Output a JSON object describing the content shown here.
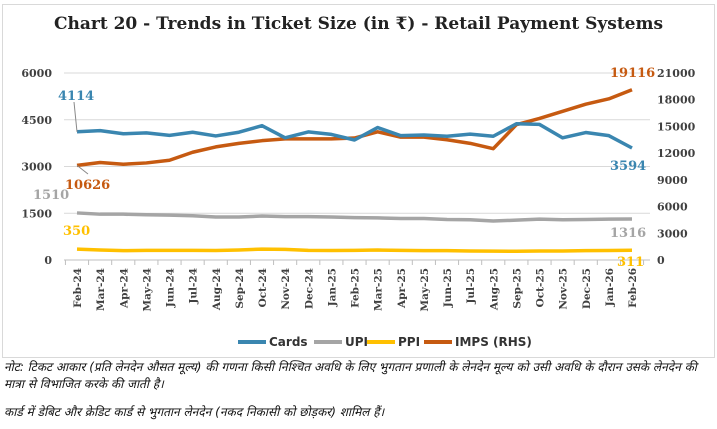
{
  "chart_data": {
    "type": "line",
    "title": "Chart 20 - Trends in Ticket Size (in ₹) - Retail Payment Systems",
    "categories": [
      "Feb-24",
      "Mar-24",
      "Apr-24",
      "May-24",
      "Jun-24",
      "Jul-24",
      "Aug-24",
      "Sep-24",
      "Oct-24",
      "Nov-24",
      "Dec-24",
      "Jan-25",
      "Feb-25",
      "Mar-25",
      "Apr-25",
      "May-25",
      "Jun-25",
      "Jul-25",
      "Aug-25",
      "Sep-25",
      "Oct-25",
      "Nov-25",
      "Dec-25",
      "Jan-26",
      "Feb-26"
    ],
    "left_axis": {
      "ylim": [
        0,
        6000
      ],
      "ticks": [
        "0",
        "1500",
        "3000",
        "4500",
        "6000"
      ]
    },
    "right_axis": {
      "ylim": [
        0,
        21000
      ],
      "ticks": [
        "0",
        "3000",
        "6000",
        "9000",
        "12000",
        "15000",
        "18000",
        "21000"
      ]
    },
    "grid": true,
    "legend": "bottom",
    "series": [
      {
        "name": "Cards",
        "axis": "left",
        "color": "#3a86b0",
        "values": [
          4114,
          4150,
          4050,
          4080,
          4000,
          4100,
          3980,
          4100,
          4310,
          3920,
          4110,
          4030,
          3850,
          4250,
          3990,
          4010,
          3970,
          4040,
          3970,
          4370,
          4350,
          3920,
          4090,
          3990,
          3594
        ],
        "first_label": "4114",
        "last_label": "3594"
      },
      {
        "name": "UPI",
        "axis": "left",
        "color": "#a5a5a5",
        "values": [
          1510,
          1470,
          1470,
          1450,
          1440,
          1420,
          1380,
          1380,
          1410,
          1390,
          1390,
          1380,
          1360,
          1350,
          1330,
          1330,
          1300,
          1290,
          1250,
          1280,
          1310,
          1290,
          1300,
          1310,
          1316
        ],
        "first_label": "1510",
        "last_label": "1316"
      },
      {
        "name": "PPI",
        "axis": "left",
        "color": "#ffc000",
        "values": [
          350,
          320,
          300,
          310,
          310,
          310,
          305,
          320,
          350,
          340,
          310,
          305,
          310,
          320,
          310,
          300,
          300,
          290,
          285,
          280,
          290,
          290,
          300,
          305,
          311
        ],
        "first_label": "350",
        "last_label": "311"
      },
      {
        "name": "IMPS (RHS)",
        "axis": "right",
        "color": "#c65a11",
        "values": [
          10626,
          10950,
          10750,
          10900,
          11200,
          12100,
          12700,
          13100,
          13400,
          13600,
          13600,
          13600,
          13700,
          14400,
          13800,
          13800,
          13500,
          13100,
          12500,
          15200,
          15900,
          16700,
          17500,
          18100,
          19116
        ],
        "first_label": "10626",
        "last_label": "19116"
      }
    ]
  },
  "notes": {
    "line1": "नोट: टिकट आकार (प्रति लेनदेन औसत मूल्य) की गणना किसी निश्चित अवधि के लिए भुगतान प्रणाली के लेनदेन मूल्य को उसी अवधि के दौरान उसके लेनदेन की मात्रा से विभाजित करके की जाती है।",
    "line2": "कार्ड में डेबिट और क्रेडिट कार्ड से भुगतान लेनदेन (नकद निकासी को छोड़कर) शामिल हैं।"
  }
}
